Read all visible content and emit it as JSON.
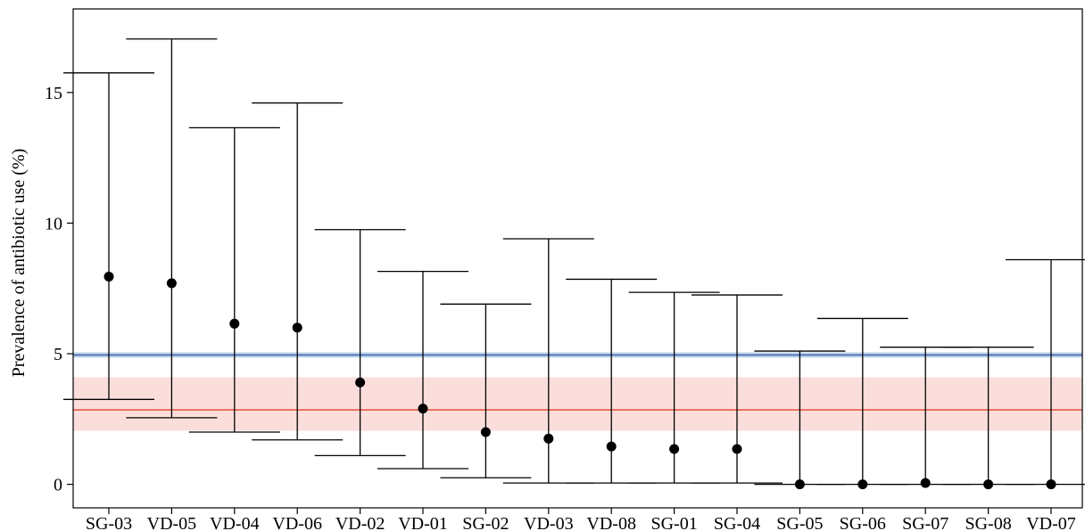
{
  "chart_data": {
    "type": "scatter",
    "title": "",
    "xlabel": "",
    "ylabel": "Prevalence of antibiotic use (%)",
    "ylim": [
      -0.9,
      18.2
    ],
    "yticks": [
      0,
      5,
      10,
      15
    ],
    "grid": false,
    "categories": [
      "SG-03",
      "VD-05",
      "VD-04",
      "VD-06",
      "VD-02",
      "VD-01",
      "SG-02",
      "VD-03",
      "VD-08",
      "SG-01",
      "SG-04",
      "SG-05",
      "SG-06",
      "SG-07",
      "SG-08",
      "VD-07"
    ],
    "series": [
      {
        "values": [
          7.95,
          7.7,
          6.15,
          6.0,
          3.9,
          2.9,
          2.0,
          1.75,
          1.45,
          1.35,
          1.35,
          0.0,
          0.0,
          0.05,
          0.0,
          0.0
        ],
        "lower": [
          3.25,
          2.55,
          2.0,
          1.7,
          1.1,
          0.6,
          0.25,
          0.05,
          0.05,
          0.05,
          0.05,
          0.0,
          0.0,
          0.0,
          0.0,
          0.0
        ],
        "upper": [
          15.75,
          17.05,
          13.65,
          14.6,
          9.75,
          8.15,
          6.9,
          9.4,
          7.85,
          7.35,
          7.25,
          5.1,
          6.35,
          5.25,
          5.25,
          8.6
        ]
      }
    ],
    "reference_lines": [
      {
        "value": 4.95,
        "band": [
          4.85,
          5.05
        ],
        "line_color": "#3d5fa8",
        "band_color": "#b9d0e8"
      },
      {
        "value": 2.85,
        "band": [
          2.05,
          4.1
        ],
        "line_color": "#e2402e",
        "band_color": "#fbdedb"
      }
    ],
    "colors": {
      "point": "#000000",
      "errorbar": "#000000",
      "axis": "#000000"
    }
  }
}
